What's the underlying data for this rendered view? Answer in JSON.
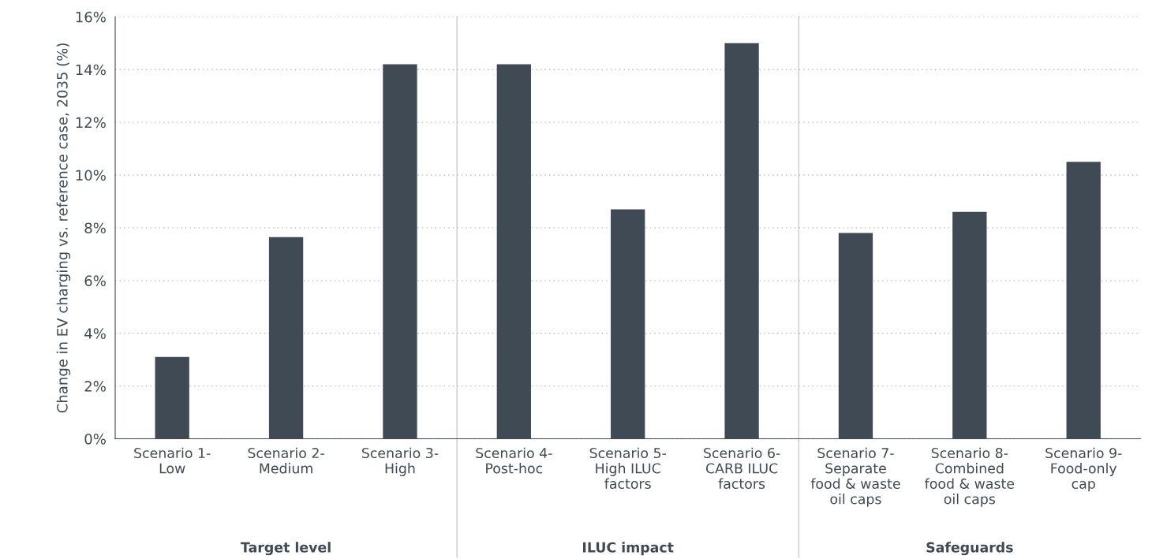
{
  "chart_data": {
    "type": "bar",
    "ylabel": "Change in EV charging vs. reference case, 2035 (%)",
    "categories": [
      "Scenario 1-\nLow",
      "Scenario 2-\nMedium",
      "Scenario 3-\nHigh",
      "Scenario 4-\nPost-hoc",
      "Scenario 5-\nHigh ILUC\nfactors",
      "Scenario 6-\nCARB ILUC\nfactors",
      "Scenario 7-\nSeparate\nfood & waste\noil caps",
      "Scenario 8-\nCombined\nfood & waste\noil caps",
      "Scenario 9-\nFood-only\ncap"
    ],
    "values": [
      3.1,
      7.65,
      14.2,
      14.2,
      8.7,
      15.0,
      7.8,
      8.6,
      10.5
    ],
    "color": "#3f4a54",
    "ylim": [
      0,
      16
    ],
    "yticks": [
      {
        "value": 0,
        "label": "0%"
      },
      {
        "value": 2,
        "label": "2%"
      },
      {
        "value": 4,
        "label": "4%"
      },
      {
        "value": 6,
        "label": "6%"
      },
      {
        "value": 8,
        "label": "8%"
      },
      {
        "value": 10,
        "label": "10%"
      },
      {
        "value": 12,
        "label": "12%"
      },
      {
        "value": 14,
        "label": "14%"
      },
      {
        "value": 16,
        "label": "16%"
      }
    ],
    "grid": "y",
    "annotations": [
      "Target level",
      "ILUC impact",
      "Safeguards"
    ]
  }
}
